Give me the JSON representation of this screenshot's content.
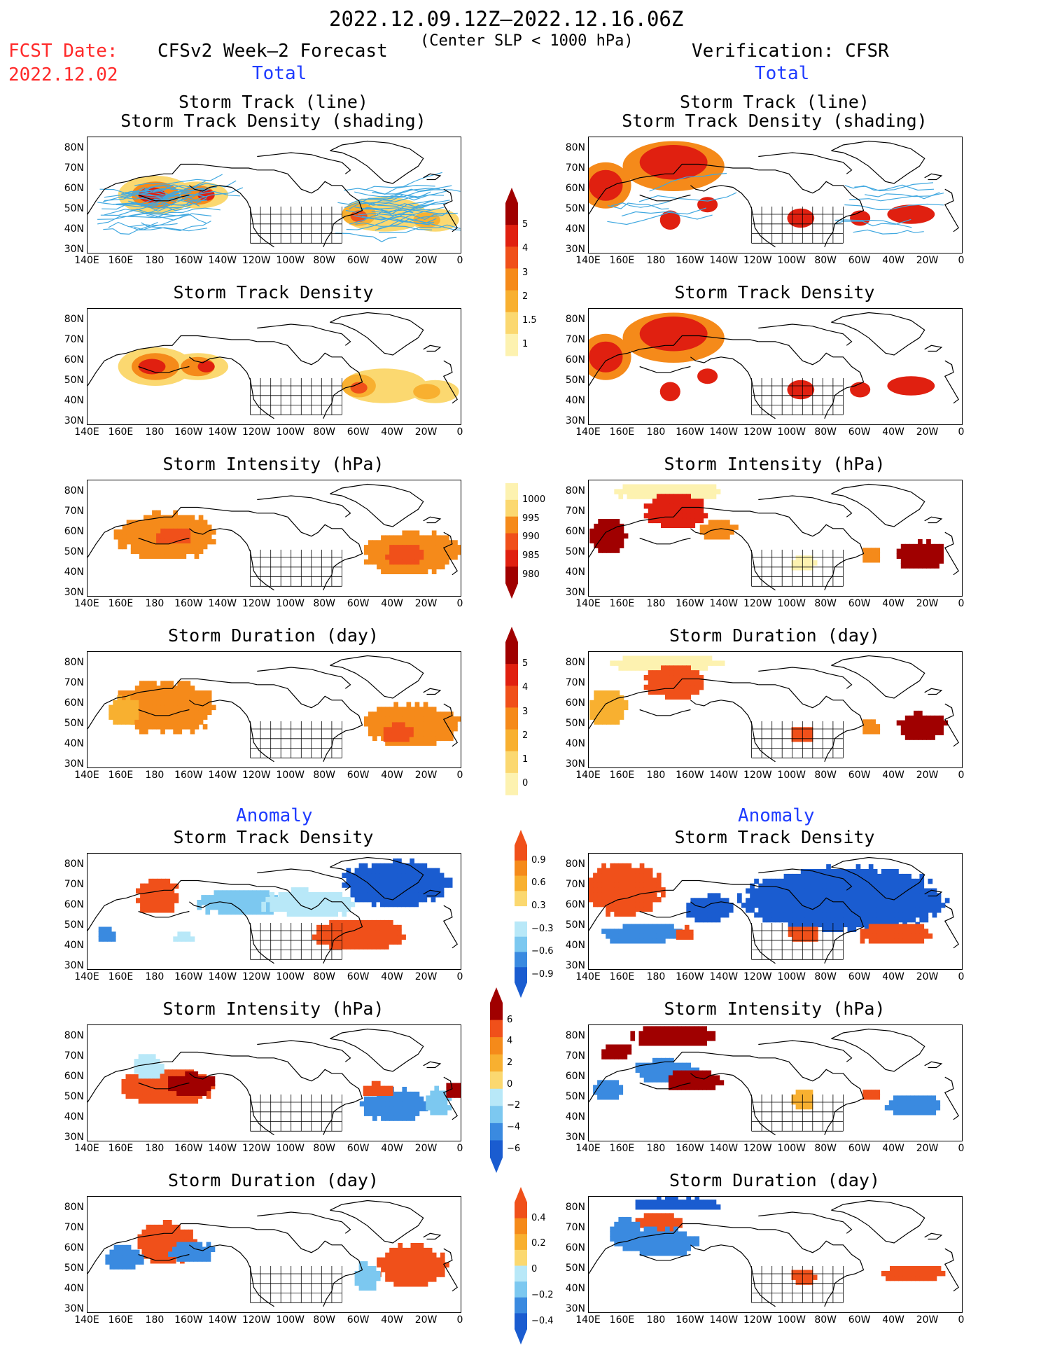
{
  "header": {
    "date_range": "2022.12.09.12Z–2022.12.16.06Z",
    "condition": "(Center SLP < 1000 hPa)",
    "fcst_label": "FCST Date:",
    "fcst_date": "2022.12.02",
    "left_title": "CFSv2 Week–2 Forecast",
    "right_title": "Verification: CFSR",
    "total_label": "Total",
    "anomaly_label": "Anomaly"
  },
  "panel_titles": {
    "track_line": "Storm Track (line)",
    "track_shading": "Storm Track Density (shading)",
    "density": "Storm Track Density",
    "intensity": "Storm Intensity (hPa)",
    "duration": "Storm Duration (day)"
  },
  "axes": {
    "lat_labels": [
      "80N",
      "70N",
      "60N",
      "50N",
      "40N",
      "30N"
    ],
    "lon_labels": [
      "140E",
      "160E",
      "180",
      "160W",
      "140W",
      "120W",
      "100W",
      "80W",
      "60W",
      "40W",
      "20W",
      "0"
    ]
  },
  "colorbars": {
    "density_total": [
      "5",
      "4",
      "3",
      "2",
      "1.5",
      "1"
    ],
    "intensity_total": [
      "1000",
      "995",
      "990",
      "985",
      "980"
    ],
    "duration_total": [
      "5",
      "4",
      "3",
      "2",
      "1",
      "0"
    ],
    "density_anom": [
      "0.9",
      "0.6",
      "0.3",
      "−0.3",
      "−0.6",
      "−0.9"
    ],
    "intensity_anom": [
      "6",
      "4",
      "2",
      "0",
      "−2",
      "−4",
      "−6"
    ],
    "duration_anom": [
      "0.4",
      "0.2",
      "0",
      "−0.2",
      "−0.4"
    ]
  },
  "colors": {
    "dark_red": "#a00000",
    "red": "#e02010",
    "orange_red": "#f0501a",
    "orange": "#f58a1a",
    "light_orange": "#f8b030",
    "yellow": "#fbd870",
    "pale_yellow": "#fdf2b0",
    "pale_blue": "#b8e8f8",
    "light_blue": "#7cc8f0",
    "blue": "#3a8ae0",
    "dark_blue": "#1a5cd0",
    "track_line": "#40a8e0"
  }
}
